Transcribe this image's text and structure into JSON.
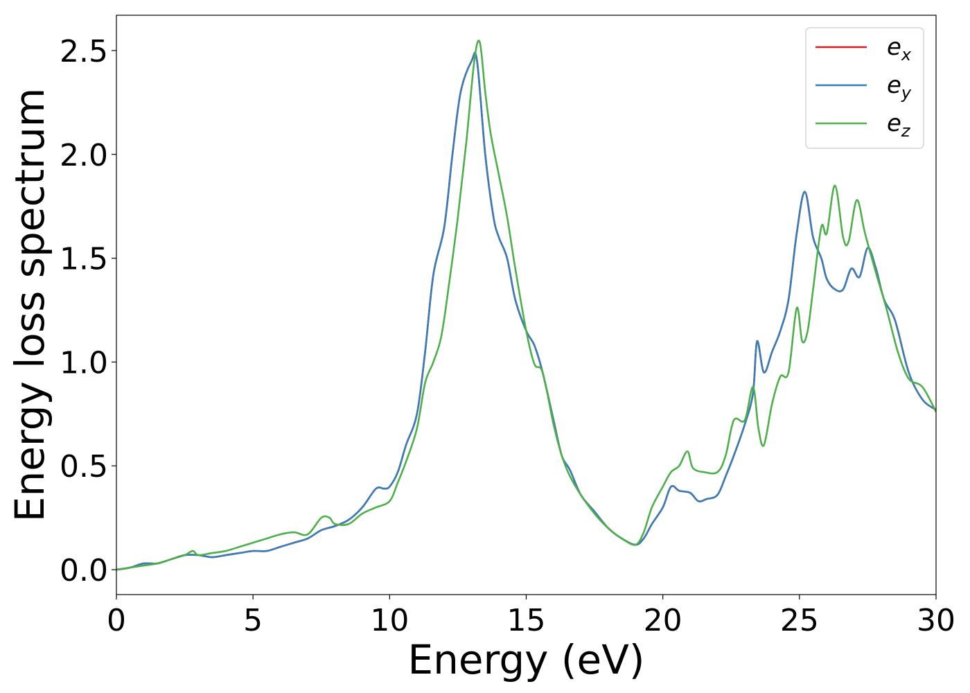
{
  "chart_data": {
    "type": "line",
    "xlabel": "Energy (eV)",
    "ylabel": "Energy loss spectrum",
    "xlim": [
      0,
      30
    ],
    "ylim": [
      -0.12,
      2.67
    ],
    "xticks": [
      0,
      5,
      10,
      15,
      20,
      25,
      30
    ],
    "xtick_labels": [
      "0",
      "5",
      "10",
      "15",
      "20",
      "25",
      "30"
    ],
    "yticks": [
      0.0,
      0.5,
      1.0,
      1.5,
      2.0,
      2.5
    ],
    "ytick_labels": [
      "0.0",
      "0.5",
      "1.0",
      "1.5",
      "2.0",
      "2.5"
    ],
    "grid": false,
    "legend_position": "top-right",
    "series": [
      {
        "name": "ex",
        "legend_main": "e",
        "legend_sub": "x",
        "color": "#e41a1c",
        "x": [
          0,
          0.5,
          1,
          1.5,
          2,
          2.5,
          3,
          3.5,
          4,
          4.5,
          5,
          5.5,
          6,
          6.5,
          7,
          7.5,
          8,
          8.5,
          9,
          9.5,
          9.8,
          10,
          10.3,
          10.6,
          11,
          11.3,
          11.6,
          12,
          12.3,
          12.6,
          13,
          13.2,
          13.5,
          13.8,
          14,
          14.3,
          14.6,
          15,
          15.3,
          15.6,
          16,
          16.3,
          16.6,
          17,
          17.5,
          18,
          18.5,
          19,
          19.3,
          19.6,
          20,
          20.3,
          20.6,
          21,
          21.3,
          21.6,
          22,
          22.3,
          22.6,
          23,
          23.3,
          23.45,
          23.7,
          24,
          24.3,
          24.6,
          24.9,
          25.2,
          25.5,
          25.8,
          26,
          26.3,
          26.6,
          26.9,
          27.2,
          27.5,
          27.8,
          28.1,
          28.5,
          29,
          29.5,
          30
        ],
        "values": [
          0.0,
          0.01,
          0.03,
          0.03,
          0.05,
          0.07,
          0.07,
          0.06,
          0.07,
          0.08,
          0.09,
          0.09,
          0.11,
          0.13,
          0.15,
          0.19,
          0.21,
          0.24,
          0.3,
          0.39,
          0.39,
          0.4,
          0.47,
          0.6,
          0.75,
          1.05,
          1.42,
          1.65,
          2.0,
          2.3,
          2.45,
          2.45,
          2.0,
          1.7,
          1.6,
          1.5,
          1.3,
          1.15,
          1.08,
          0.95,
          0.72,
          0.55,
          0.48,
          0.36,
          0.28,
          0.2,
          0.15,
          0.12,
          0.15,
          0.22,
          0.3,
          0.4,
          0.38,
          0.37,
          0.33,
          0.34,
          0.36,
          0.45,
          0.55,
          0.7,
          0.85,
          1.1,
          0.95,
          1.05,
          1.15,
          1.3,
          1.62,
          1.82,
          1.6,
          1.5,
          1.4,
          1.35,
          1.35,
          1.45,
          1.41,
          1.55,
          1.45,
          1.3,
          1.2,
          0.95,
          0.82,
          0.77
        ]
      },
      {
        "name": "ey",
        "legend_main": "e",
        "legend_sub": "y",
        "color": "#377eb8",
        "x": [
          0,
          0.5,
          1,
          1.5,
          2,
          2.5,
          3,
          3.5,
          4,
          4.5,
          5,
          5.5,
          6,
          6.5,
          7,
          7.5,
          8,
          8.5,
          9,
          9.5,
          9.8,
          10,
          10.3,
          10.6,
          11,
          11.3,
          11.6,
          12,
          12.3,
          12.6,
          13,
          13.2,
          13.5,
          13.8,
          14,
          14.3,
          14.6,
          15,
          15.3,
          15.6,
          16,
          16.3,
          16.6,
          17,
          17.5,
          18,
          18.5,
          19,
          19.3,
          19.6,
          20,
          20.3,
          20.6,
          21,
          21.3,
          21.6,
          22,
          22.3,
          22.6,
          23,
          23.3,
          23.45,
          23.7,
          24,
          24.3,
          24.6,
          24.9,
          25.2,
          25.5,
          25.8,
          26,
          26.3,
          26.6,
          26.9,
          27.2,
          27.5,
          27.8,
          28.1,
          28.5,
          29,
          29.5,
          30
        ],
        "values": [
          0.0,
          0.01,
          0.03,
          0.03,
          0.05,
          0.07,
          0.07,
          0.06,
          0.07,
          0.08,
          0.09,
          0.09,
          0.11,
          0.13,
          0.15,
          0.19,
          0.21,
          0.24,
          0.3,
          0.39,
          0.39,
          0.4,
          0.47,
          0.6,
          0.75,
          1.05,
          1.42,
          1.65,
          2.0,
          2.3,
          2.45,
          2.45,
          2.0,
          1.7,
          1.6,
          1.5,
          1.3,
          1.15,
          1.08,
          0.95,
          0.72,
          0.55,
          0.48,
          0.36,
          0.28,
          0.2,
          0.15,
          0.12,
          0.15,
          0.22,
          0.3,
          0.4,
          0.38,
          0.37,
          0.33,
          0.34,
          0.36,
          0.45,
          0.55,
          0.7,
          0.85,
          1.1,
          0.95,
          1.05,
          1.15,
          1.3,
          1.62,
          1.82,
          1.6,
          1.5,
          1.4,
          1.35,
          1.35,
          1.45,
          1.41,
          1.55,
          1.45,
          1.3,
          1.2,
          0.95,
          0.82,
          0.77
        ]
      },
      {
        "name": "ez",
        "legend_main": "e",
        "legend_sub": "z",
        "color": "#4daf4a",
        "x": [
          0,
          0.5,
          1,
          1.5,
          2,
          2.5,
          2.8,
          3,
          3.5,
          4,
          4.5,
          5,
          5.5,
          6,
          6.5,
          7,
          7.5,
          7.8,
          8,
          8.5,
          9,
          9.5,
          10,
          10.3,
          10.6,
          11,
          11.3,
          11.6,
          11.9,
          12.2,
          12.5,
          12.8,
          13.1,
          13.3,
          13.5,
          13.7,
          14,
          14.3,
          14.6,
          15,
          15.3,
          15.6,
          16,
          16.3,
          16.6,
          17,
          17.5,
          18,
          18.5,
          19,
          19.3,
          19.6,
          20,
          20.3,
          20.6,
          20.9,
          21.1,
          21.5,
          22,
          22.3,
          22.6,
          23,
          23.3,
          23.5,
          23.7,
          24,
          24.3,
          24.6,
          24.9,
          25.1,
          25.3,
          25.5,
          25.8,
          26,
          26.3,
          26.6,
          26.8,
          27.1,
          27.4,
          27.8,
          28.2,
          28.6,
          29,
          29.5,
          30
        ],
        "values": [
          0.0,
          0.01,
          0.02,
          0.03,
          0.05,
          0.07,
          0.09,
          0.07,
          0.08,
          0.09,
          0.11,
          0.13,
          0.15,
          0.17,
          0.18,
          0.17,
          0.25,
          0.25,
          0.22,
          0.22,
          0.27,
          0.3,
          0.33,
          0.42,
          0.52,
          0.68,
          0.9,
          1.0,
          1.13,
          1.4,
          1.7,
          2.05,
          2.45,
          2.54,
          2.3,
          2.1,
          1.9,
          1.7,
          1.45,
          1.15,
          0.99,
          0.95,
          0.7,
          0.55,
          0.45,
          0.36,
          0.27,
          0.2,
          0.15,
          0.12,
          0.18,
          0.3,
          0.4,
          0.47,
          0.5,
          0.57,
          0.49,
          0.47,
          0.47,
          0.55,
          0.72,
          0.72,
          0.88,
          0.68,
          0.6,
          0.8,
          0.93,
          0.95,
          1.26,
          1.1,
          1.15,
          1.35,
          1.65,
          1.62,
          1.85,
          1.6,
          1.58,
          1.78,
          1.62,
          1.43,
          1.25,
          1.05,
          0.92,
          0.88,
          0.76
        ]
      }
    ]
  }
}
